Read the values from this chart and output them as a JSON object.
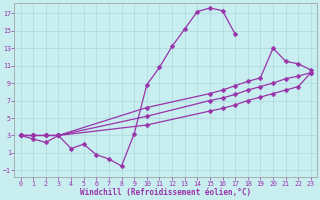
{
  "xlabel": "Windchill (Refroidissement éolien,°C)",
  "bg_color": "#c8eef0",
  "grid_color": "#b0dde0",
  "line_color": "#9933aa",
  "xlim": [
    -0.5,
    23.5
  ],
  "ylim": [
    -1.8,
    18.2
  ],
  "xticks": [
    0,
    1,
    2,
    3,
    4,
    5,
    6,
    7,
    8,
    9,
    10,
    11,
    12,
    13,
    14,
    15,
    16,
    17,
    18,
    19,
    20,
    21,
    22,
    23
  ],
  "yticks": [
    -1,
    1,
    3,
    5,
    7,
    9,
    11,
    13,
    15,
    17
  ],
  "line1_x": [
    0,
    1,
    2,
    3,
    4,
    5,
    6,
    7,
    8,
    9,
    10,
    11,
    12,
    13,
    14,
    15,
    16,
    17,
    18,
    19,
    20,
    21,
    22,
    23
  ],
  "line1_y": [
    3.0,
    2.6,
    2.2,
    3.0,
    1.5,
    2.0,
    0.8,
    0.3,
    -0.5,
    3.2,
    8.8,
    10.8,
    13.2,
    15.2,
    17.2,
    17.6,
    17.3,
    14.6,
    null,
    null,
    null,
    null,
    null,
    null
  ],
  "line2_x": [
    0,
    1,
    2,
    3,
    10,
    15,
    16,
    17,
    18,
    19,
    20,
    21,
    22,
    23
  ],
  "line2_y": [
    3.0,
    3.0,
    3.0,
    3.0,
    6.2,
    7.8,
    8.2,
    8.7,
    9.2,
    9.6,
    13.0,
    11.5,
    11.2,
    10.5
  ],
  "line3_x": [
    0,
    1,
    2,
    3,
    10,
    15,
    16,
    17,
    18,
    19,
    20,
    21,
    22,
    23
  ],
  "line3_y": [
    3.0,
    3.0,
    3.0,
    3.0,
    5.2,
    7.0,
    7.3,
    7.7,
    8.2,
    8.6,
    9.0,
    9.5,
    9.8,
    10.2
  ],
  "line4_x": [
    0,
    1,
    2,
    3,
    10,
    15,
    16,
    17,
    18,
    19,
    20,
    21,
    22,
    23
  ],
  "line4_y": [
    3.0,
    3.0,
    3.0,
    3.0,
    4.2,
    5.8,
    6.1,
    6.5,
    7.0,
    7.4,
    7.8,
    8.2,
    8.6,
    10.2
  ]
}
